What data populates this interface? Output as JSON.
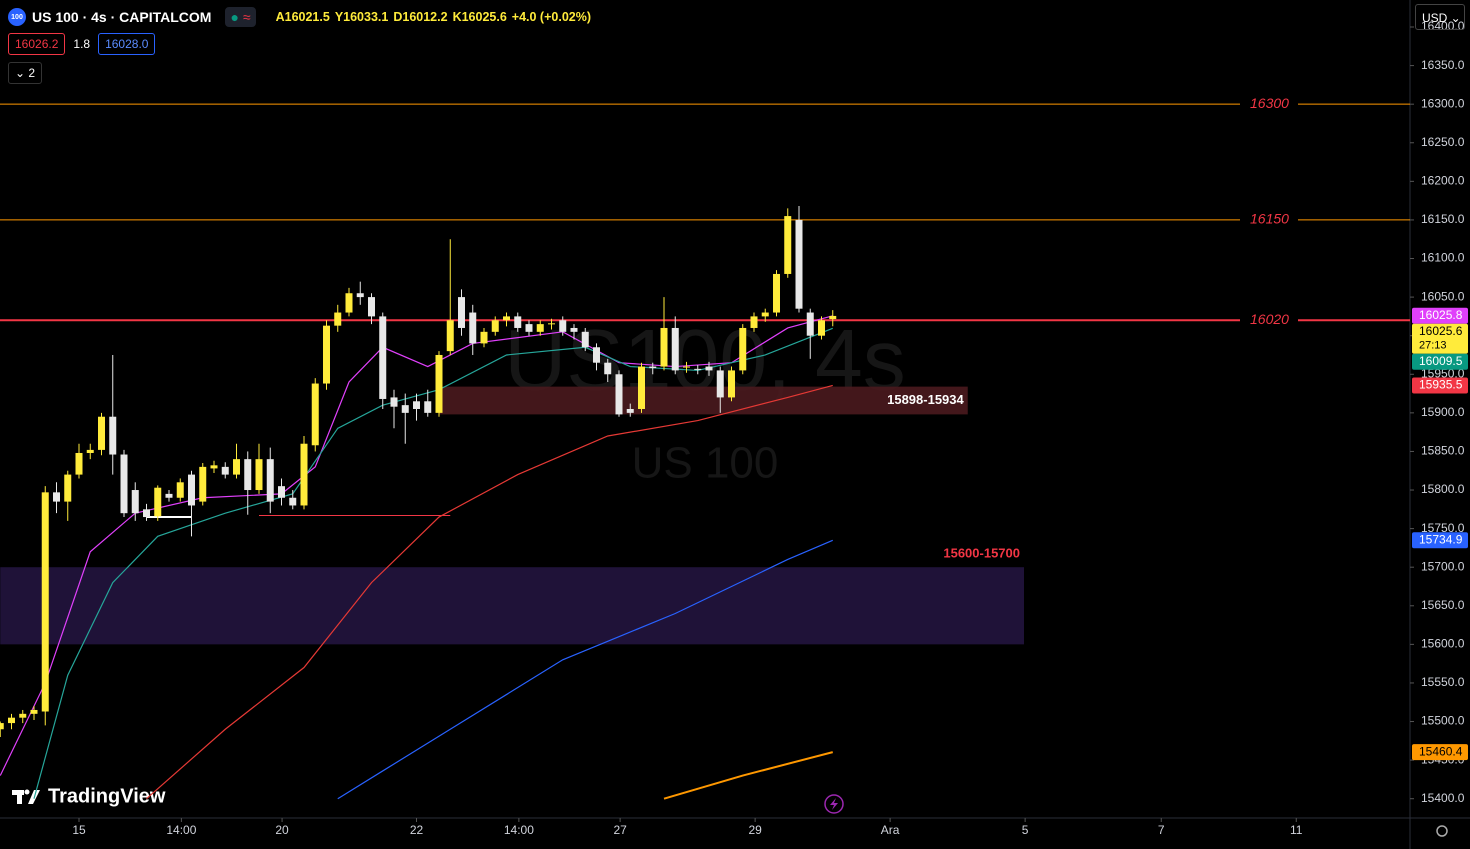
{
  "header": {
    "icon": "100",
    "symbol": "US 100 · 4s · CAPITALCOM",
    "ohlc": [
      {
        "label": "A",
        "value": "16021.5"
      },
      {
        "label": "Y",
        "value": "16033.1"
      },
      {
        "label": "D",
        "value": "16012.2"
      },
      {
        "label": "K",
        "value": "16025.6"
      }
    ],
    "change": "+4.0 (+0.02%)",
    "bid": "16026.2",
    "spread": "1.8",
    "ask": "16028.0",
    "indicators": "2",
    "currency": "USD",
    "countdown": "27:13"
  },
  "watermark": {
    "main": "US100, 4s",
    "sub": "US 100"
  },
  "brand": "TradingView",
  "chart_data": {
    "type": "candlestick",
    "up_color": "#ffeb3b",
    "down_color": "#e8e8e8",
    "open": [
      15490,
      15498,
      15505,
      15510,
      15513,
      15797,
      15785,
      15820,
      15848,
      15852,
      15895,
      15846,
      15800,
      15775,
      15766,
      15795,
      15790,
      15820,
      15785,
      15828,
      15830,
      15820,
      15840,
      15800,
      15840,
      15805,
      15790,
      15780,
      15858,
      15938,
      16013,
      16030,
      16055,
      16050,
      16025,
      15920,
      15910,
      15915,
      15915,
      15900,
      15980,
      16050,
      16030,
      15990,
      16005,
      16020,
      16025,
      16015,
      16005,
      16015,
      16020,
      16010,
      16005,
      15985,
      15965,
      15950,
      15905,
      15905,
      15960,
      15960,
      16010,
      15960,
      15957,
      15960,
      15955,
      15920,
      15955,
      16010,
      16025,
      16030,
      16080,
      16150,
      16030,
      16000,
      16021.5
    ],
    "high": [
      15500,
      15510,
      15515,
      15520,
      15805,
      15810,
      15825,
      15860,
      15860,
      15900,
      15975,
      15852,
      15810,
      15782,
      15806,
      15800,
      15815,
      15825,
      15835,
      15838,
      15836,
      15860,
      15850,
      15860,
      15855,
      15815,
      15800,
      15870,
      15945,
      16020,
      16040,
      16062,
      16070,
      16055,
      16030,
      15930,
      15925,
      15925,
      15930,
      15980,
      16125,
      16060,
      16040,
      16010,
      16025,
      16030,
      16030,
      16020,
      16020,
      16022,
      16025,
      16015,
      16010,
      15990,
      15970,
      15955,
      15912,
      15965,
      15965,
      16050,
      16025,
      15966,
      15962,
      15966,
      15960,
      15960,
      16015,
      16030,
      16035,
      16085,
      16165,
      16168,
      16035,
      16025,
      16033.1
    ],
    "low": [
      15480,
      15490,
      15498,
      15502,
      15495,
      15770,
      15760,
      15815,
      15840,
      15845,
      15820,
      15765,
      15760,
      15760,
      15760,
      15785,
      15785,
      15740,
      15780,
      15822,
      15815,
      15815,
      15768,
      15795,
      15770,
      15780,
      15775,
      15775,
      15850,
      15930,
      16005,
      16025,
      16040,
      16015,
      15905,
      15880,
      15860,
      15890,
      15895,
      15895,
      15975,
      16000,
      15975,
      15985,
      16000,
      16012,
      16005,
      16000,
      16000,
      16008,
      16000,
      15995,
      15980,
      15955,
      15940,
      15895,
      15895,
      15900,
      15950,
      15955,
      15950,
      15952,
      15950,
      15948,
      15900,
      15915,
      15950,
      16005,
      16018,
      16025,
      16075,
      16030,
      15970,
      15995,
      16012.2
    ],
    "close": [
      15498,
      15505,
      15510,
      15515,
      15797,
      15785,
      15820,
      15848,
      15852,
      15895,
      15846,
      15770,
      15770,
      15765,
      15803,
      15790,
      15810,
      15780,
      15830,
      15832,
      15820,
      15840,
      15800,
      15840,
      15785,
      15790,
      15780,
      15860,
      15938,
      16013,
      16030,
      16055,
      16050,
      16025,
      15918,
      15908,
      15900,
      15905,
      15900,
      15975,
      16020,
      16010,
      15990,
      16005,
      16020,
      16025,
      16010,
      16005,
      16015,
      16016,
      16005,
      16005,
      15985,
      15965,
      15950,
      15898,
      15900,
      15960,
      15958,
      16010,
      15955,
      15960,
      15956,
      15955,
      15920,
      15955,
      16010,
      16025,
      16030,
      16080,
      16155,
      16035,
      16000,
      16020,
      16025.6
    ],
    "overlays": [
      {
        "color": "#e040fb",
        "x": [
          0,
          4,
          8,
          12,
          18,
          25,
          28,
          31,
          34,
          38,
          42,
          50,
          55,
          60,
          65,
          70,
          74
        ],
        "values": [
          15430,
          15550,
          15720,
          15770,
          15790,
          15795,
          15830,
          15940,
          15985,
          15960,
          15990,
          16005,
          15965,
          15960,
          15965,
          16010,
          16025.8
        ]
      },
      {
        "color": "#26a69a",
        "x": [
          3,
          6,
          10,
          14,
          20,
          26,
          30,
          34,
          39,
          45,
          52,
          56,
          62,
          68,
          74
        ],
        "values": [
          15400,
          15560,
          15680,
          15740,
          15770,
          15795,
          15880,
          15910,
          15930,
          15975,
          15985,
          15960,
          15955,
          15975,
          16009.5
        ]
      },
      {
        "color": "#e53935",
        "x": [
          13,
          20,
          27,
          33,
          39,
          46,
          54,
          62,
          70,
          74
        ],
        "values": [
          15400,
          15490,
          15570,
          15680,
          15765,
          15820,
          15870,
          15890,
          15920,
          15935.5
        ]
      },
      {
        "color": "#2962ff",
        "x": [
          30,
          40,
          50,
          60,
          70,
          74
        ],
        "values": [
          15400,
          15490,
          15580,
          15640,
          15710,
          15734.9
        ]
      },
      {
        "color": "#ff9800",
        "x": [
          59,
          66,
          74
        ],
        "values": [
          15400,
          15430,
          15460.4
        ]
      }
    ],
    "levels": [
      {
        "value": 16300,
        "color": "#ff9800"
      },
      {
        "value": 16150,
        "color": "#ff9800"
      },
      {
        "value": 16020,
        "color": "#f23645"
      }
    ],
    "zones": [
      {
        "low": 15898,
        "high": 15934,
        "label": "15898-15934",
        "color": "#4a1a1e",
        "text_color": "#ffffff",
        "x": [
          39,
          86
        ]
      },
      {
        "low": 15600,
        "high": 15700,
        "label": "15600-15700",
        "color": "#22143e",
        "text_color": "#f23645",
        "x": [
          0,
          91
        ]
      }
    ],
    "segments": [
      {
        "value": 15765,
        "color": "#ffffff",
        "x": [
          13,
          17
        ]
      },
      {
        "value": 15767,
        "color": "#f23645",
        "x": [
          23,
          40
        ]
      }
    ],
    "price_labels": [
      {
        "value": 16025.8,
        "color": "#e040fb"
      },
      {
        "value": 16025.6,
        "color": "#ffeb3b"
      },
      {
        "value": 16009.5,
        "color": "#089981"
      },
      {
        "value": 15935.5,
        "color": "#f23645"
      },
      {
        "value": 15734.9,
        "color": "#2962ff"
      },
      {
        "value": 15460.4,
        "color": "#ff9800"
      }
    ],
    "ylim": [
      15375,
      16435
    ],
    "yticks": [
      {
        "value": 15400,
        "label": "15400.0"
      },
      {
        "value": 15450,
        "label": "15450.0"
      },
      {
        "value": 15500,
        "label": "15500.0"
      },
      {
        "value": 15550,
        "label": "15550.0"
      },
      {
        "value": 15600,
        "label": "15600.0"
      },
      {
        "value": 15650,
        "label": "15650.0"
      },
      {
        "value": 15700,
        "label": "15700.0"
      },
      {
        "value": 15750,
        "label": "15750.0"
      },
      {
        "value": 15800,
        "label": "15800.0"
      },
      {
        "value": 15850,
        "label": "15850.0"
      },
      {
        "value": 15900,
        "label": "15900.0"
      },
      {
        "value": 15950,
        "label": "15950.0"
      },
      {
        "value": 16000,
        "label": "16000.0"
      },
      {
        "value": 16050,
        "label": "16050.0"
      },
      {
        "value": 16100,
        "label": "16100.0"
      },
      {
        "value": 16150,
        "label": "16150.0"
      },
      {
        "value": 16200,
        "label": "16200.0"
      },
      {
        "value": 16250,
        "label": "16250.0"
      },
      {
        "value": 16300,
        "label": "16300.0"
      },
      {
        "value": 16350,
        "label": "16350.0"
      },
      {
        "value": 16400,
        "label": "16400.0"
      }
    ],
    "xticks": [
      {
        "value": 7,
        "label": "15"
      },
      {
        "value": 16.1,
        "label": "14:00"
      },
      {
        "value": 25.05,
        "label": "20"
      },
      {
        "value": 37,
        "label": "22"
      },
      {
        "value": 46.1,
        "label": "14:00"
      },
      {
        "value": 55.1,
        "label": "27"
      },
      {
        "value": 67.1,
        "label": "29"
      },
      {
        "value": 79.1,
        "label": "Ara"
      },
      {
        "value": 91.1,
        "label": "5"
      },
      {
        "value": 103.2,
        "label": "7"
      },
      {
        "value": 115.2,
        "label": "11"
      }
    ],
    "grid": false
  }
}
